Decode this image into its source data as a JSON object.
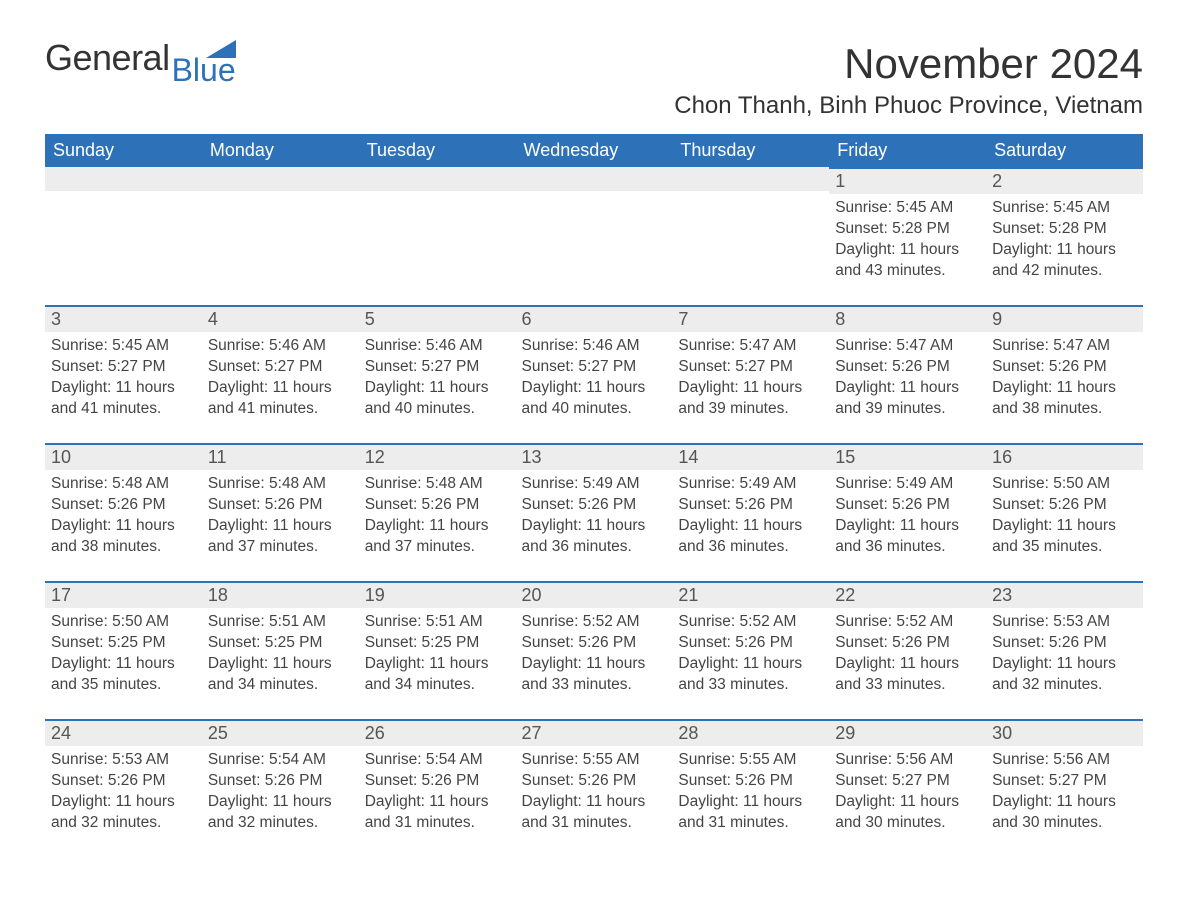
{
  "colors": {
    "header_bg": "#2d72b8",
    "header_text": "#ffffff",
    "daynum_bg": "#ededed",
    "day_border_top": "#2d72b8",
    "body_bg": "#ffffff",
    "text": "#444444",
    "title_text": "#333333"
  },
  "typography": {
    "title_fontsize": 42,
    "subtitle_fontsize": 24,
    "header_fontsize": 18,
    "daynum_fontsize": 18,
    "body_fontsize": 15.5,
    "font_family": "Arial"
  },
  "logo": {
    "word1": "General",
    "word2": "Blue"
  },
  "title": "November 2024",
  "subtitle": "Chon Thanh, Binh Phuoc Province, Vietnam",
  "weekdays": [
    "Sunday",
    "Monday",
    "Tuesday",
    "Wednesday",
    "Thursday",
    "Friday",
    "Saturday"
  ],
  "labels": {
    "sunrise": "Sunrise:",
    "sunset": "Sunset:",
    "daylight": "Daylight:"
  },
  "weeks": [
    [
      null,
      null,
      null,
      null,
      null,
      {
        "n": "1",
        "sunrise": "5:45 AM",
        "sunset": "5:28 PM",
        "daylight": "11 hours and 43 minutes."
      },
      {
        "n": "2",
        "sunrise": "5:45 AM",
        "sunset": "5:28 PM",
        "daylight": "11 hours and 42 minutes."
      }
    ],
    [
      {
        "n": "3",
        "sunrise": "5:45 AM",
        "sunset": "5:27 PM",
        "daylight": "11 hours and 41 minutes."
      },
      {
        "n": "4",
        "sunrise": "5:46 AM",
        "sunset": "5:27 PM",
        "daylight": "11 hours and 41 minutes."
      },
      {
        "n": "5",
        "sunrise": "5:46 AM",
        "sunset": "5:27 PM",
        "daylight": "11 hours and 40 minutes."
      },
      {
        "n": "6",
        "sunrise": "5:46 AM",
        "sunset": "5:27 PM",
        "daylight": "11 hours and 40 minutes."
      },
      {
        "n": "7",
        "sunrise": "5:47 AM",
        "sunset": "5:27 PM",
        "daylight": "11 hours and 39 minutes."
      },
      {
        "n": "8",
        "sunrise": "5:47 AM",
        "sunset": "5:26 PM",
        "daylight": "11 hours and 39 minutes."
      },
      {
        "n": "9",
        "sunrise": "5:47 AM",
        "sunset": "5:26 PM",
        "daylight": "11 hours and 38 minutes."
      }
    ],
    [
      {
        "n": "10",
        "sunrise": "5:48 AM",
        "sunset": "5:26 PM",
        "daylight": "11 hours and 38 minutes."
      },
      {
        "n": "11",
        "sunrise": "5:48 AM",
        "sunset": "5:26 PM",
        "daylight": "11 hours and 37 minutes."
      },
      {
        "n": "12",
        "sunrise": "5:48 AM",
        "sunset": "5:26 PM",
        "daylight": "11 hours and 37 minutes."
      },
      {
        "n": "13",
        "sunrise": "5:49 AM",
        "sunset": "5:26 PM",
        "daylight": "11 hours and 36 minutes."
      },
      {
        "n": "14",
        "sunrise": "5:49 AM",
        "sunset": "5:26 PM",
        "daylight": "11 hours and 36 minutes."
      },
      {
        "n": "15",
        "sunrise": "5:49 AM",
        "sunset": "5:26 PM",
        "daylight": "11 hours and 36 minutes."
      },
      {
        "n": "16",
        "sunrise": "5:50 AM",
        "sunset": "5:26 PM",
        "daylight": "11 hours and 35 minutes."
      }
    ],
    [
      {
        "n": "17",
        "sunrise": "5:50 AM",
        "sunset": "5:25 PM",
        "daylight": "11 hours and 35 minutes."
      },
      {
        "n": "18",
        "sunrise": "5:51 AM",
        "sunset": "5:25 PM",
        "daylight": "11 hours and 34 minutes."
      },
      {
        "n": "19",
        "sunrise": "5:51 AM",
        "sunset": "5:25 PM",
        "daylight": "11 hours and 34 minutes."
      },
      {
        "n": "20",
        "sunrise": "5:52 AM",
        "sunset": "5:26 PM",
        "daylight": "11 hours and 33 minutes."
      },
      {
        "n": "21",
        "sunrise": "5:52 AM",
        "sunset": "5:26 PM",
        "daylight": "11 hours and 33 minutes."
      },
      {
        "n": "22",
        "sunrise": "5:52 AM",
        "sunset": "5:26 PM",
        "daylight": "11 hours and 33 minutes."
      },
      {
        "n": "23",
        "sunrise": "5:53 AM",
        "sunset": "5:26 PM",
        "daylight": "11 hours and 32 minutes."
      }
    ],
    [
      {
        "n": "24",
        "sunrise": "5:53 AM",
        "sunset": "5:26 PM",
        "daylight": "11 hours and 32 minutes."
      },
      {
        "n": "25",
        "sunrise": "5:54 AM",
        "sunset": "5:26 PM",
        "daylight": "11 hours and 32 minutes."
      },
      {
        "n": "26",
        "sunrise": "5:54 AM",
        "sunset": "5:26 PM",
        "daylight": "11 hours and 31 minutes."
      },
      {
        "n": "27",
        "sunrise": "5:55 AM",
        "sunset": "5:26 PM",
        "daylight": "11 hours and 31 minutes."
      },
      {
        "n": "28",
        "sunrise": "5:55 AM",
        "sunset": "5:26 PM",
        "daylight": "11 hours and 31 minutes."
      },
      {
        "n": "29",
        "sunrise": "5:56 AM",
        "sunset": "5:27 PM",
        "daylight": "11 hours and 30 minutes."
      },
      {
        "n": "30",
        "sunrise": "5:56 AM",
        "sunset": "5:27 PM",
        "daylight": "11 hours and 30 minutes."
      }
    ]
  ]
}
